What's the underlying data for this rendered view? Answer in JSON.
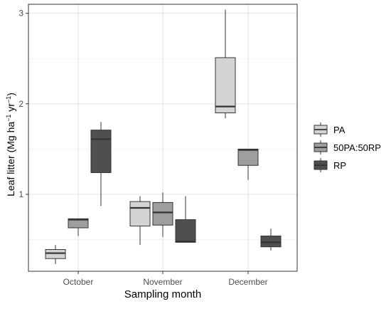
{
  "chart_data": {
    "type": "boxplot",
    "title": "",
    "xlabel": "Sampling month",
    "ylabel_main": "Leaf litter (Mg ha",
    "ylabel_sup1": "−1",
    "ylabel_mid": " yr",
    "ylabel_sup2": "−1",
    "ylabel_end": ")",
    "ylim": [
      0.15,
      3.1
    ],
    "y_ticks": [
      "1",
      "2",
      "3"
    ],
    "y_tick_values": [
      1,
      2,
      3
    ],
    "categories": [
      "October",
      "November",
      "December"
    ],
    "grid": true,
    "legend_position": "right",
    "series": [
      {
        "name": "PA",
        "color": "#d4d4d4",
        "boxes": [
          {
            "min": 0.23,
            "q1": 0.29,
            "median": 0.35,
            "q3": 0.39,
            "max": 0.44
          },
          {
            "min": 0.44,
            "q1": 0.65,
            "median": 0.85,
            "q3": 0.92,
            "max": 0.98
          },
          {
            "min": 1.84,
            "q1": 1.9,
            "median": 1.97,
            "q3": 2.51,
            "max": 3.04
          }
        ]
      },
      {
        "name": "50PA:50RP",
        "color": "#9e9e9e",
        "boxes": [
          {
            "min": 0.54,
            "q1": 0.63,
            "median": 0.72,
            "q3": 0.73,
            "max": 0.73
          },
          {
            "min": 0.53,
            "q1": 0.66,
            "median": 0.8,
            "q3": 0.91,
            "max": 1.02
          },
          {
            "min": 1.16,
            "q1": 1.32,
            "median": 1.49,
            "q3": 1.5,
            "max": 1.5
          }
        ]
      },
      {
        "name": "RP",
        "color": "#4f4f4f",
        "boxes": [
          {
            "min": 0.87,
            "q1": 1.24,
            "median": 1.61,
            "q3": 1.71,
            "max": 1.8
          },
          {
            "min": 0.47,
            "q1": 0.47,
            "median": 0.48,
            "q3": 0.72,
            "max": 0.98
          },
          {
            "min": 0.38,
            "q1": 0.42,
            "median": 0.47,
            "q3": 0.54,
            "max": 0.62
          }
        ]
      }
    ]
  }
}
